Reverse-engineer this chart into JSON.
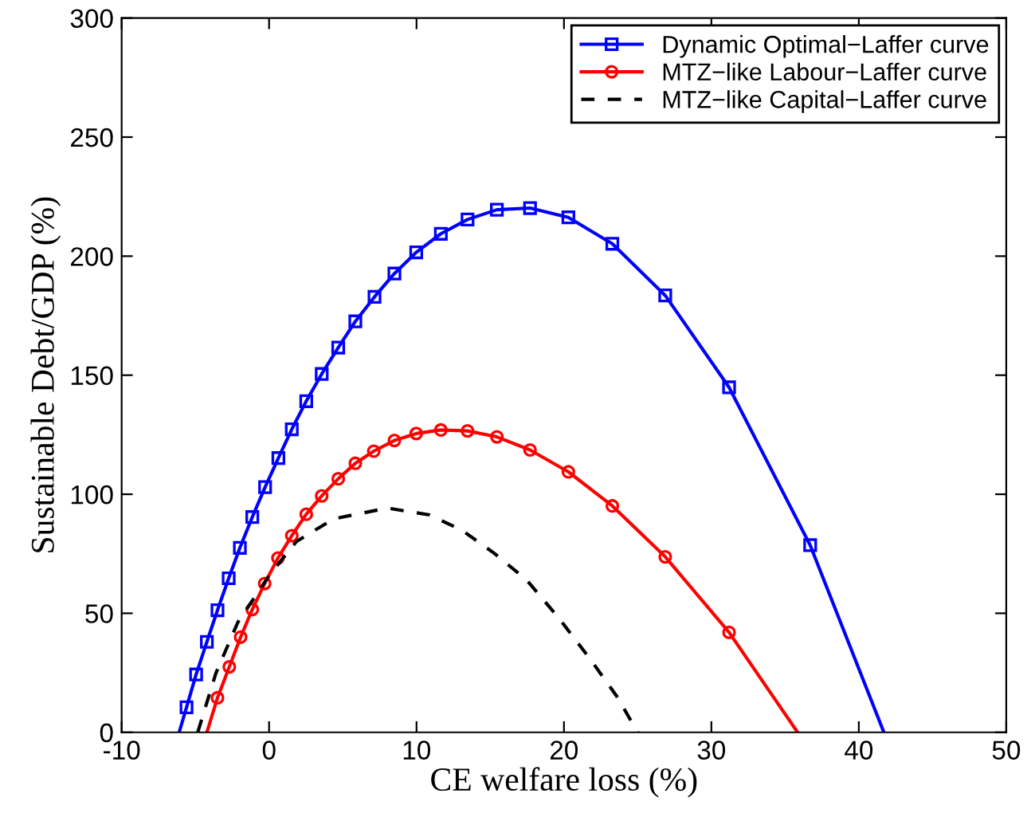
{
  "chart_data": {
    "type": "line",
    "xlabel": "CE welfare loss (%)",
    "ylabel": "Sustainable Debt/GDP (%)",
    "xlim": [
      -10,
      50
    ],
    "ylim": [
      0,
      300
    ],
    "xticks": [
      -10,
      0,
      10,
      20,
      30,
      40,
      50
    ],
    "yticks": [
      0,
      50,
      100,
      150,
      200,
      250,
      300
    ],
    "grid": false,
    "legend": "top right",
    "series": [
      {
        "name": "Dynamic Optimal−Laffer curve",
        "color": "#0000ff",
        "marker": "square",
        "line_style": "solid",
        "x": [
          -6.1,
          -5.6,
          -4.95,
          -4.22,
          -3.5,
          -2.74,
          -1.98,
          -1.14,
          -0.27,
          0.63,
          1.54,
          2.52,
          3.57,
          4.69,
          5.85,
          7.15,
          8.5,
          9.98,
          11.65,
          13.46,
          15.45,
          17.7,
          20.3,
          23.28,
          26.87,
          31.2,
          36.7,
          41.7
        ],
        "values": [
          0,
          10.5,
          24.3,
          38,
          51.3,
          64.7,
          77.5,
          90.4,
          103,
          115.2,
          127.3,
          139.1,
          150.5,
          161.6,
          172.6,
          182.9,
          192.7,
          201.6,
          209.4,
          215.4,
          219.5,
          220.2,
          216.3,
          205.2,
          183.5,
          144.9,
          78.6,
          0
        ]
      },
      {
        "name": "MTZ−like Labour−Laffer curve",
        "color": "#ff0000",
        "marker": "circle",
        "line_style": "solid",
        "x": [
          -4.22,
          -3.5,
          -2.7,
          -1.93,
          -1.14,
          -0.3,
          0.6,
          1.54,
          2.52,
          3.57,
          4.69,
          5.85,
          7.1,
          8.5,
          9.98,
          11.65,
          13.46,
          15.45,
          17.7,
          20.3,
          23.28,
          26.87,
          31.2,
          35.85
        ],
        "values": [
          0,
          14.5,
          27.5,
          40,
          51.6,
          62.5,
          73.2,
          82.6,
          91.6,
          99.3,
          106.5,
          113,
          118.1,
          122.6,
          125.5,
          127,
          126.6,
          124.1,
          118.6,
          109.4,
          95.1,
          73.7,
          42,
          0
        ]
      },
      {
        "name": "MTZ−like Capital−Laffer curve",
        "color": "#000000",
        "marker": "none",
        "line_style": "dashed",
        "x": [
          -4.84,
          -3.6,
          -2.12,
          0.05,
          1.86,
          4.4,
          8.02,
          10.9,
          13.1,
          15.27,
          17.45,
          19.6,
          21.8,
          23.6,
          25.0
        ],
        "values": [
          0,
          25,
          46.2,
          66.3,
          80.2,
          89.7,
          94.2,
          91.3,
          84.8,
          75.2,
          64.1,
          48.4,
          30.6,
          15,
          0
        ]
      }
    ]
  }
}
